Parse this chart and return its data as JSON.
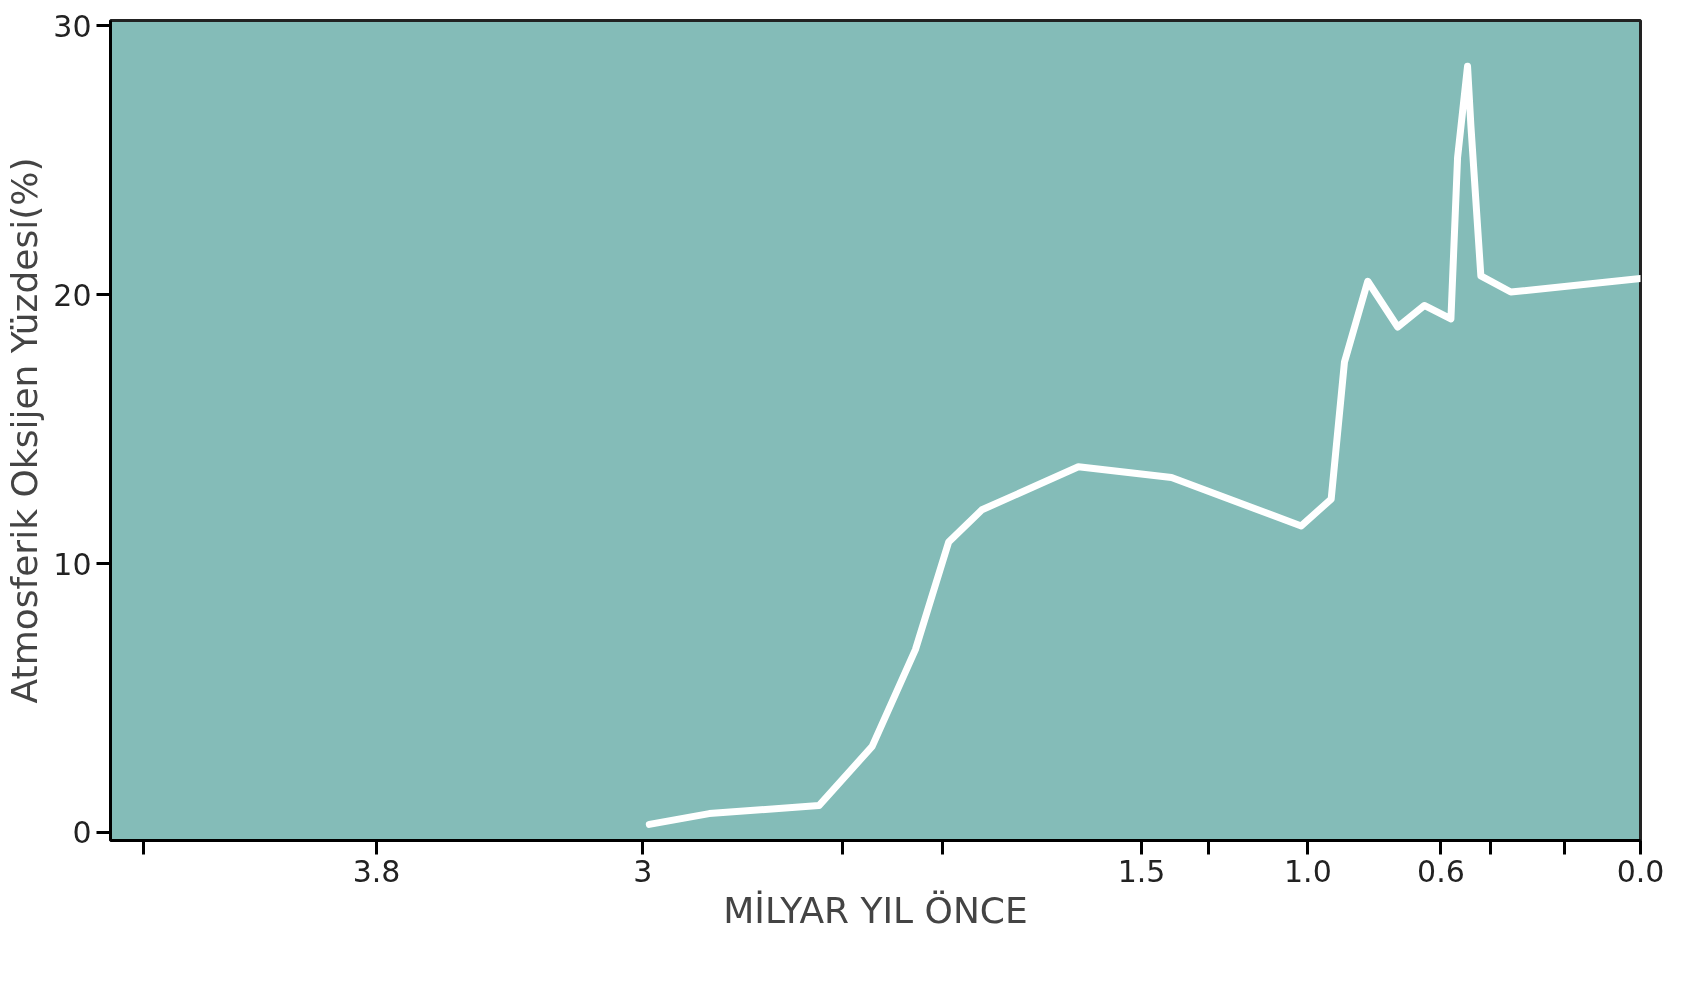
{
  "chart_data": {
    "type": "line",
    "xlabel": "MİLYAR YIL ÖNCE",
    "ylabel": "Atmosferik Oksijen Yüzdesi(%)",
    "xlim": [
      4.6,
      0.0
    ],
    "ylim": [
      -0.3,
      30.2
    ],
    "xticks": [
      {
        "value": 4.5,
        "label": null
      },
      {
        "value": 3.8,
        "label": "3.8"
      },
      {
        "value": 3,
        "label": "3"
      },
      {
        "value": 2.4,
        "label": null
      },
      {
        "value": 2.1,
        "label": null
      },
      {
        "value": 1.5,
        "label": "1.5"
      },
      {
        "value": 1.3,
        "label": null
      },
      {
        "value": 1.0,
        "label": "1.0"
      },
      {
        "value": 0.6,
        "label": "0.6"
      },
      {
        "value": 0.45,
        "label": null
      },
      {
        "value": 0.23,
        "label": null
      },
      {
        "value": 0.0,
        "label": "0.0"
      }
    ],
    "yticks": [
      0,
      10,
      20,
      30
    ],
    "grid": false,
    "line_style": "solid",
    "series": [
      {
        "color": "#ffffff",
        "x": [
          2.98,
          2.8,
          2.47,
          2.31,
          2.18,
          2.08,
          1.98,
          1.69,
          1.41,
          1.02,
          0.93,
          0.89,
          0.82,
          0.73,
          0.65,
          0.57,
          0.55,
          0.52,
          0.51,
          0.48,
          0.39,
          0.0
        ],
        "values": [
          0.3,
          0.7,
          1.0,
          3.2,
          6.8,
          10.8,
          12.0,
          13.6,
          13.2,
          11.4,
          12.4,
          17.5,
          20.5,
          18.8,
          19.6,
          19.1,
          25.1,
          28.5,
          26.3,
          20.7,
          20.1,
          20.6
        ]
      }
    ]
  }
}
